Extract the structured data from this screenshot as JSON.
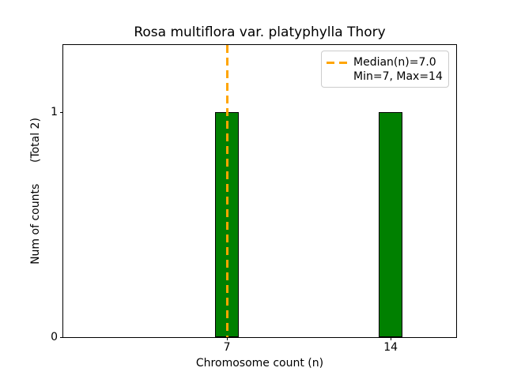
{
  "figure": {
    "title": "Rosa multiflora var. platyphylla Thory"
  },
  "chart_data": {
    "type": "bar",
    "title": "Rosa multiflora var. platyphylla Thory",
    "xlabel": "Chromosome count (n)",
    "ylabel": "Num of counts      (Total 2)",
    "x": [
      7,
      14
    ],
    "values": [
      1,
      1
    ],
    "bar_width": 1.0,
    "total_counts": 2,
    "xticks": [
      7,
      14
    ],
    "yticks": [
      0,
      1
    ],
    "xlim": [
      0,
      16.8
    ],
    "ylim": [
      0,
      1.3
    ],
    "grid": false,
    "median_line": {
      "x": 7.0,
      "style": "dashed",
      "color": "#FFA500"
    },
    "stats": {
      "median": 7.0,
      "min": 7,
      "max": 14
    },
    "colors": {
      "bar": "#008000",
      "bar_edge": "#000000",
      "median": "#FFA500",
      "axes": "#000000",
      "background": "#ffffff",
      "legend_border": "#cccccc"
    },
    "legend": [
      "Median(n)=7.0",
      "Min=7, Max=14"
    ],
    "legend_position": "upper right"
  }
}
